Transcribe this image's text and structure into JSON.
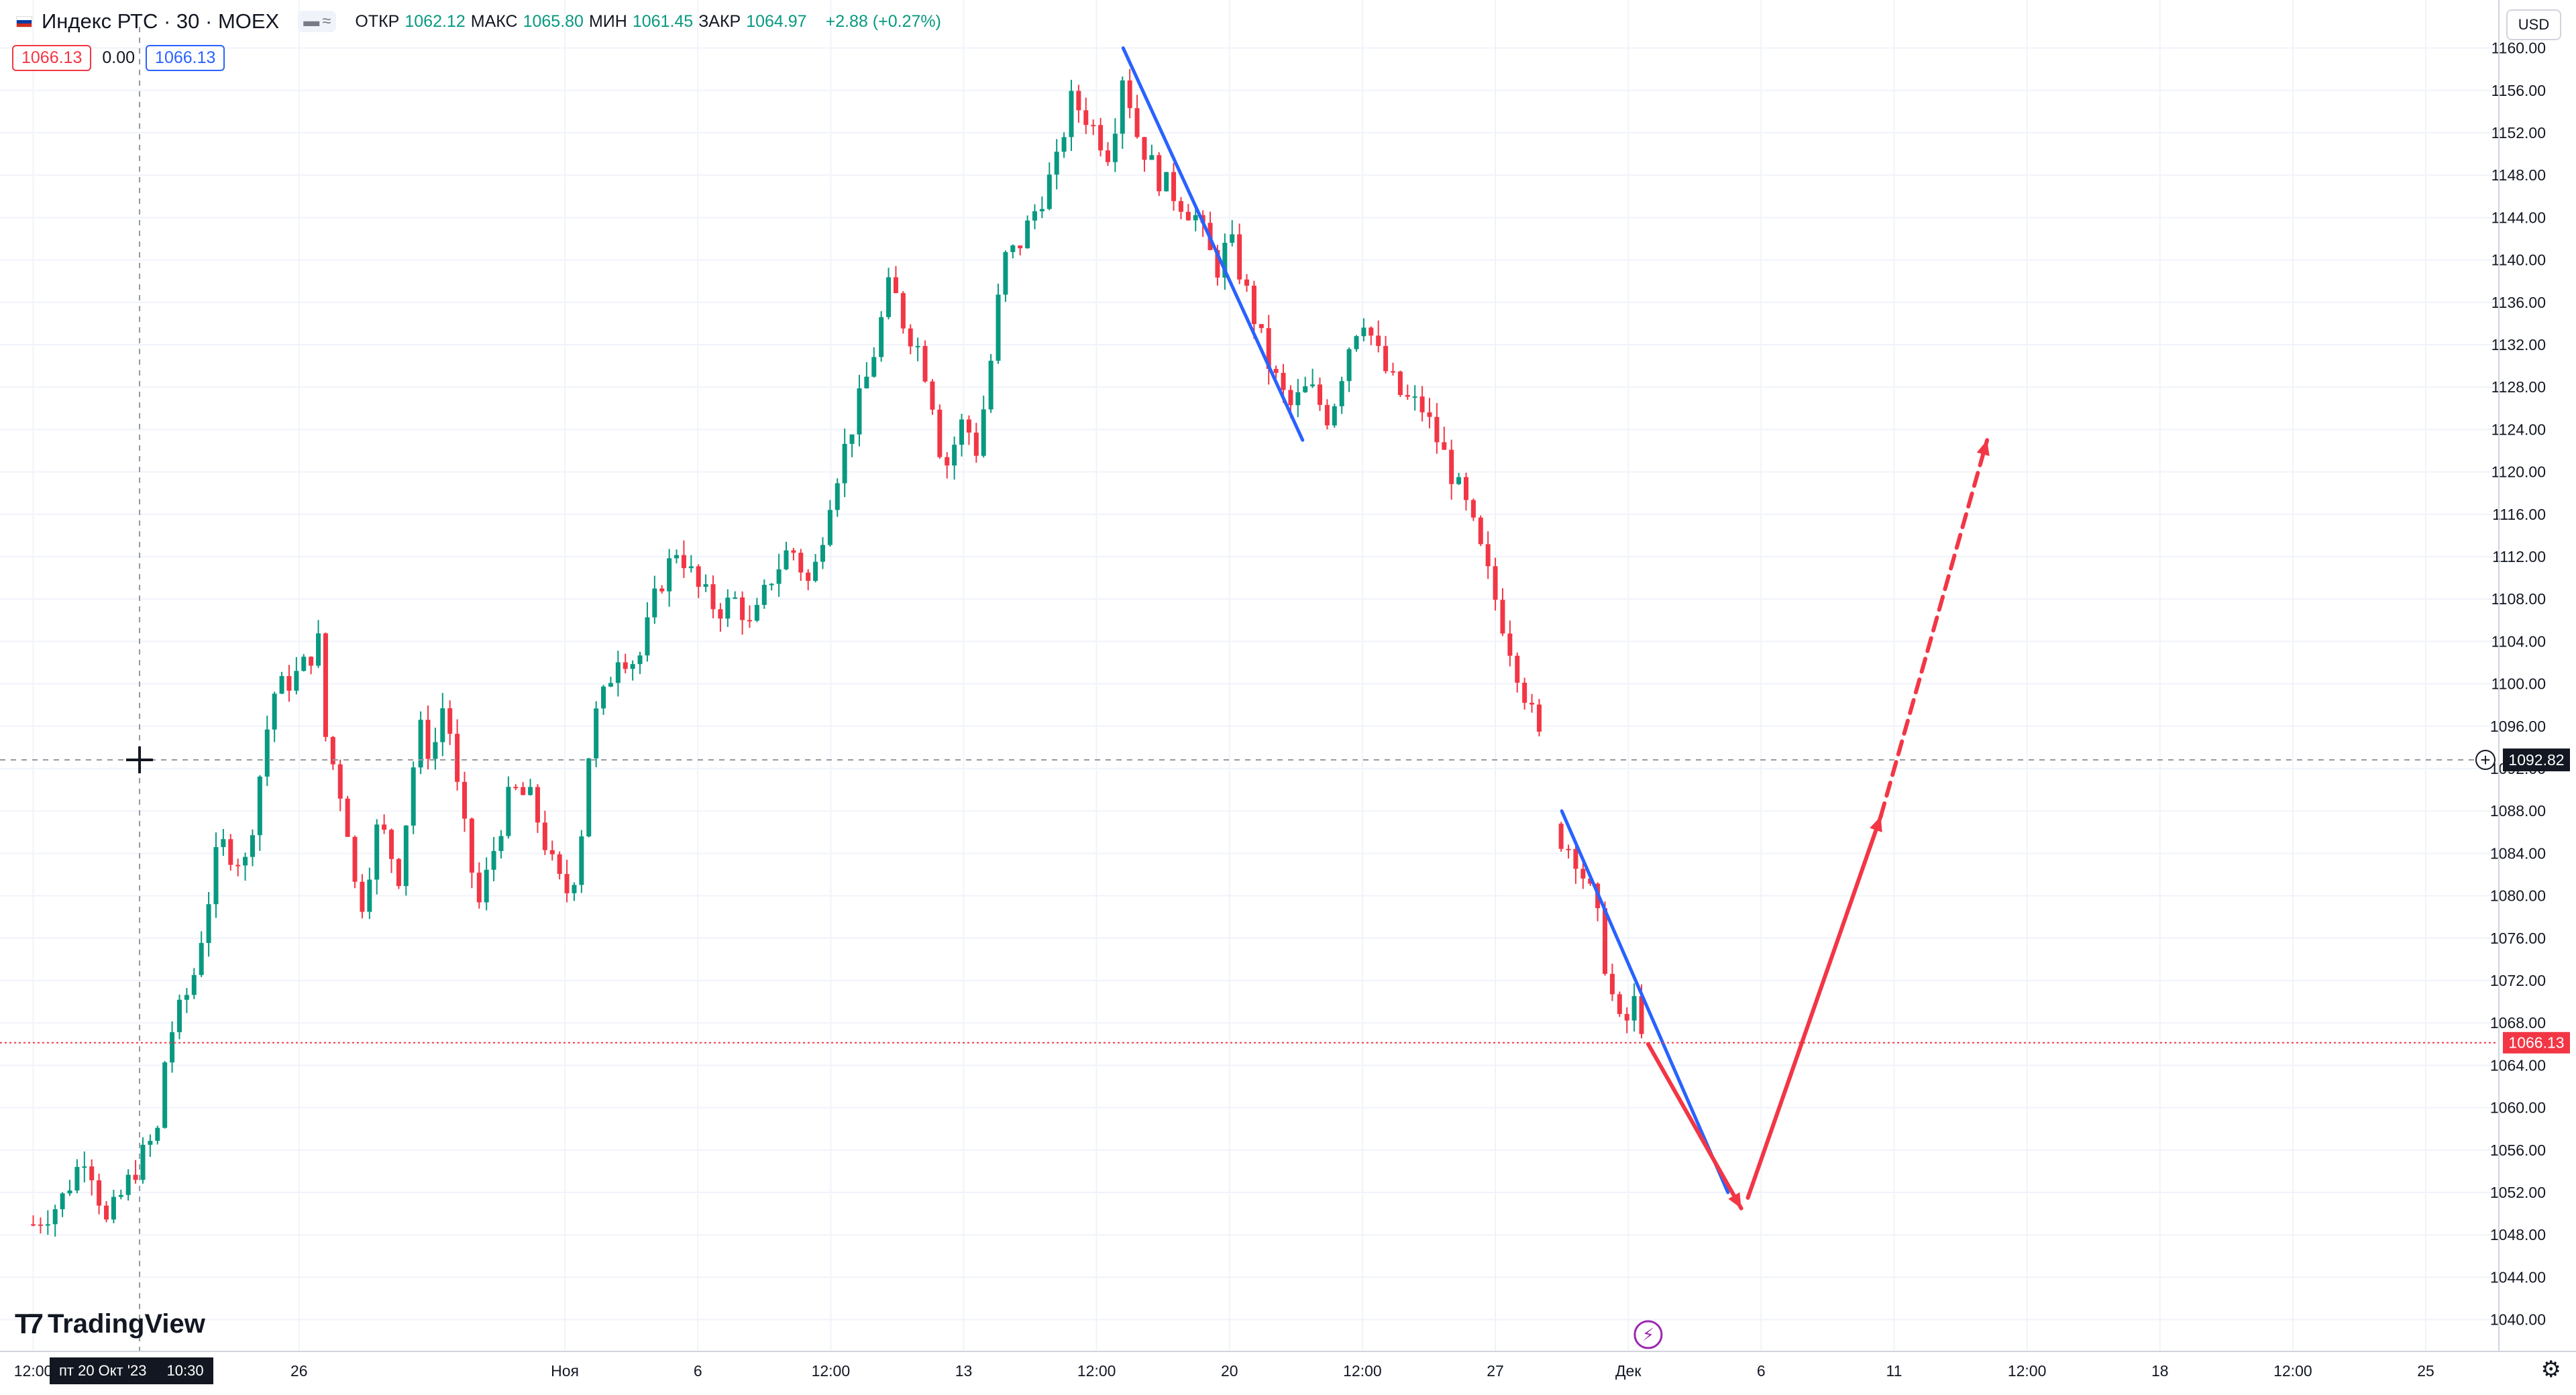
{
  "legend": {
    "symbol": "Индекс РТС · 30 · MOEX",
    "ohlc": [
      {
        "k": "ОТКР",
        "v": "1062.12"
      },
      {
        "k": "МАКС",
        "v": "1065.80"
      },
      {
        "k": "МИН",
        "v": "1061.45"
      },
      {
        "k": "ЗАКР",
        "v": "1064.97"
      }
    ],
    "change": "+2.88 (+0.27%)",
    "price_left": "1066.13",
    "spread": "0.00",
    "price_right": "1066.13"
  },
  "currency": "USD",
  "logo_text": "TradingView",
  "crosshair": {
    "price": "1092.82",
    "date": "пт 20 Окт '23",
    "time": "10:30"
  },
  "colors": {
    "up": "#089981",
    "down": "#f23645",
    "blue_line": "#2962ff",
    "red_arrow": "#f23645",
    "grid": "#f0f3fa"
  },
  "chart_data": {
    "type": "candlestick",
    "ylim": [
      1037,
      1162
    ],
    "y_ticks": [
      1040,
      1044,
      1048,
      1052,
      1056,
      1060,
      1064,
      1068,
      1072,
      1076,
      1080,
      1084,
      1088,
      1092,
      1096,
      1100,
      1104,
      1108,
      1112,
      1116,
      1120,
      1124,
      1128,
      1132,
      1136,
      1140,
      1144,
      1148,
      1152,
      1156,
      1160
    ],
    "x_ticks": [
      {
        "label": "12:00",
        "t": 0
      },
      {
        "label": "26",
        "t": 2
      },
      {
        "label": "Ноя",
        "t": 4
      },
      {
        "label": "6",
        "t": 5
      },
      {
        "label": "12:00",
        "t": 6
      },
      {
        "label": "13",
        "t": 7
      },
      {
        "label": "12:00",
        "t": 8
      },
      {
        "label": "20",
        "t": 9
      },
      {
        "label": "12:00",
        "t": 10
      },
      {
        "label": "27",
        "t": 11
      },
      {
        "label": "Дек",
        "t": 12
      },
      {
        "label": "6",
        "t": 13
      },
      {
        "label": "11",
        "t": 14
      },
      {
        "label": "12:00",
        "t": 15
      },
      {
        "label": "18",
        "t": 16
      },
      {
        "label": "12:00",
        "t": 17
      },
      {
        "label": "25",
        "t": 18
      }
    ],
    "last_price": 1066.13,
    "crosshair_price": 1092.82,
    "price_path": [
      [
        0.0,
        1049
      ],
      [
        0.2,
        1051
      ],
      [
        0.4,
        1056
      ],
      [
        0.55,
        1049
      ],
      [
        0.8,
        1055
      ],
      [
        0.95,
        1058
      ],
      [
        1.0,
        1066
      ],
      [
        1.2,
        1072
      ],
      [
        1.4,
        1085
      ],
      [
        1.6,
        1083
      ],
      [
        1.8,
        1099
      ],
      [
        2.0,
        1101
      ],
      [
        2.15,
        1104
      ],
      [
        2.2,
        1095
      ],
      [
        2.35,
        1088
      ],
      [
        2.45,
        1078
      ],
      [
        2.6,
        1087
      ],
      [
        2.75,
        1082
      ],
      [
        2.9,
        1096
      ],
      [
        3.0,
        1093
      ],
      [
        3.1,
        1099
      ],
      [
        3.2,
        1089
      ],
      [
        3.35,
        1079
      ],
      [
        3.5,
        1086
      ],
      [
        3.6,
        1090
      ],
      [
        3.75,
        1089
      ],
      [
        3.9,
        1083
      ],
      [
        4.0,
        1080
      ],
      [
        4.1,
        1083
      ],
      [
        4.2,
        1096
      ],
      [
        4.3,
        1099
      ],
      [
        4.4,
        1103
      ],
      [
        4.55,
        1102
      ],
      [
        4.7,
        1109
      ],
      [
        4.85,
        1113
      ],
      [
        5.0,
        1109
      ],
      [
        5.15,
        1107
      ],
      [
        5.3,
        1108
      ],
      [
        5.4,
        1105
      ],
      [
        5.55,
        1110
      ],
      [
        5.7,
        1113
      ],
      [
        5.85,
        1109
      ],
      [
        6.0,
        1118
      ],
      [
        6.15,
        1124
      ],
      [
        6.3,
        1130
      ],
      [
        6.45,
        1138
      ],
      [
        6.55,
        1134
      ],
      [
        6.65,
        1132
      ],
      [
        6.75,
        1128
      ],
      [
        6.85,
        1120
      ],
      [
        7.0,
        1125
      ],
      [
        7.1,
        1122
      ],
      [
        7.2,
        1130
      ],
      [
        7.3,
        1140
      ],
      [
        7.4,
        1141
      ],
      [
        7.55,
        1145
      ],
      [
        7.7,
        1149
      ],
      [
        7.8,
        1155
      ],
      [
        7.9,
        1154
      ],
      [
        8.0,
        1152
      ],
      [
        8.1,
        1150
      ],
      [
        8.2,
        1158
      ],
      [
        8.3,
        1152
      ],
      [
        8.45,
        1148
      ],
      [
        8.6,
        1146
      ],
      [
        8.75,
        1144
      ],
      [
        8.9,
        1139
      ],
      [
        9.0,
        1142
      ],
      [
        9.15,
        1136
      ],
      [
        9.3,
        1130
      ],
      [
        9.45,
        1126
      ],
      [
        9.6,
        1128
      ],
      [
        9.75,
        1125
      ],
      [
        9.9,
        1132
      ],
      [
        10.0,
        1135
      ],
      [
        10.15,
        1130
      ],
      [
        10.3,
        1127
      ],
      [
        10.45,
        1126
      ],
      [
        10.6,
        1122
      ],
      [
        10.8,
        1116
      ],
      [
        11.0,
        1108
      ],
      [
        11.2,
        1100
      ],
      [
        11.35,
        1094
      ],
      [
        11.45,
        1086
      ],
      [
        11.6,
        1084
      ],
      [
        11.75,
        1079
      ],
      [
        11.85,
        1072
      ],
      [
        11.95,
        1067
      ],
      [
        12.05,
        1070
      ],
      [
        12.15,
        1066
      ]
    ],
    "annotations": {
      "blue_lines": [
        {
          "from": [
            8.2,
            1160
          ],
          "to": [
            9.55,
            1123
          ]
        },
        {
          "from": [
            11.5,
            1088
          ],
          "to": [
            12.75,
            1052
          ]
        }
      ],
      "red_arrows": [
        {
          "from": [
            12.15,
            1066
          ],
          "to": [
            12.85,
            1050.5
          ],
          "style": "solid"
        },
        {
          "from": [
            12.9,
            1051.5
          ],
          "to": [
            13.9,
            1087.5
          ],
          "style": "solid"
        },
        {
          "from": [
            13.9,
            1087.5
          ],
          "to": [
            14.7,
            1123
          ],
          "style": "dashed"
        }
      ]
    }
  }
}
